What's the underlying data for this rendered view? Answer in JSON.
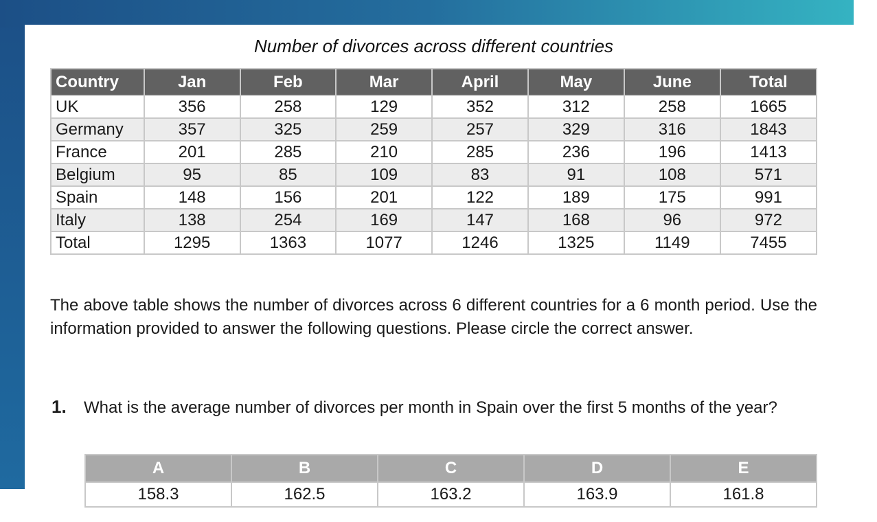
{
  "title": "Number of divorces across different countries",
  "table": {
    "header": [
      "Country",
      "Jan",
      "Feb",
      "Mar",
      "April",
      "May",
      "June",
      "Total"
    ],
    "rows": [
      [
        "UK",
        356,
        258,
        129,
        352,
        312,
        258,
        1665
      ],
      [
        "Germany",
        357,
        325,
        259,
        257,
        329,
        316,
        1843
      ],
      [
        "France",
        201,
        285,
        210,
        285,
        236,
        196,
        1413
      ],
      [
        "Belgium",
        95,
        85,
        109,
        83,
        91,
        108,
        571
      ],
      [
        "Spain",
        148,
        156,
        201,
        122,
        189,
        175,
        991
      ],
      [
        "Italy",
        138,
        254,
        169,
        147,
        168,
        96,
        972
      ],
      [
        "Total",
        1295,
        1363,
        1077,
        1246,
        1325,
        1149,
        7455
      ]
    ]
  },
  "paragraph": "The above table shows the number of divorces across 6 different countries for a 6 month period. Use the information provided to answer the following questions. Please circle the correct answer.",
  "question": {
    "number": "1.",
    "text": "What is the average number of divorces per month in Spain over the first 5 months of the year?",
    "options": {
      "letters": [
        "A",
        "B",
        "C",
        "D",
        "E"
      ],
      "values": [
        158.3,
        162.5,
        163.2,
        163.9,
        161.8
      ]
    }
  }
}
